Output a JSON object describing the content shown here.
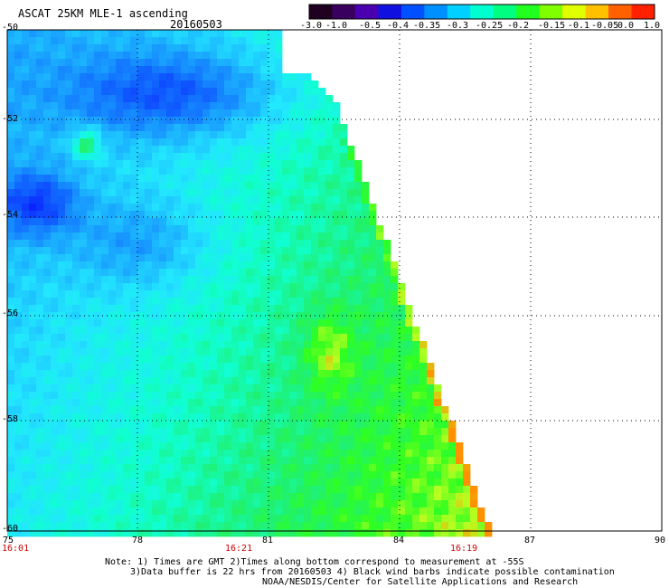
{
  "header": {
    "title": "ASCAT 25KM MLE-1 ascending",
    "date": "20160503"
  },
  "colorbar": {
    "labels": [
      "-3.0",
      "-1.0",
      "-0.5",
      "-0.4",
      "-0.35",
      "-0.3",
      "-0.25",
      "-0.2",
      "-0.15",
      "-0.1",
      "-0.05",
      "0.0",
      "1.0"
    ],
    "colors": [
      "#200020",
      "#3a0060",
      "#4a00b0",
      "#1010e0",
      "#0050ff",
      "#0090ff",
      "#00d0ff",
      "#00ffd0",
      "#00ff80",
      "#20ff20",
      "#80ff00",
      "#e0ff00",
      "#ffc000",
      "#ff6000",
      "#ff2000"
    ]
  },
  "axes": {
    "x_ticks": [
      "75",
      "78",
      "81",
      "84",
      "87",
      "90"
    ],
    "y_ticks": [
      "-50",
      "-52",
      "-54",
      "-56",
      "-58",
      "-60"
    ]
  },
  "times": [
    "16:01",
    "16:21",
    "16:19"
  ],
  "notes": {
    "line1": "Note: 1) Times are GMT 2)Times along bottom correspond to measurement at -55S",
    "line2": "3)Data buffer is 22 hrs from 20160503 4) Black wind barbs indicate possible contamination",
    "line3": "NOAA/NESDIS/Center for Satellite Applications and Research"
  }
}
